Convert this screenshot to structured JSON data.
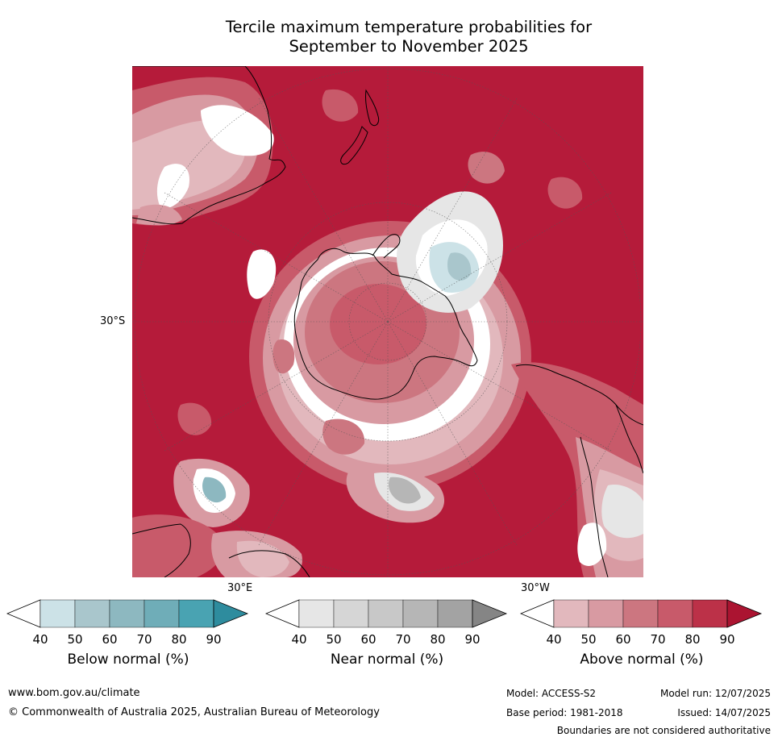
{
  "title": {
    "line1": "Tercile maximum temperature probabilities for",
    "line2": "September to November 2025"
  },
  "map": {
    "lat_label": "30°S",
    "lon_label_east": "30°E",
    "lon_label_west": "30°W",
    "colors": {
      "ocean_above": "#b51b3a",
      "above_70": "#c85a6a",
      "above_60": "#cc7680",
      "above_50": "#d89aa2",
      "above_40": "#e2b8bd",
      "white": "#ffffff",
      "below_50": "#a9c6cc",
      "below_60": "#8db8c0",
      "near_60": "#c8c8c8",
      "near_80": "#a6a6a6",
      "coast": "#000000",
      "grid": "#555555"
    }
  },
  "colorbars": [
    {
      "name": "below-normal",
      "label": "Below normal (%)",
      "ticks": [
        "40",
        "50",
        "60",
        "70",
        "80",
        "90"
      ],
      "colors": [
        "#ffffff",
        "#cce2e7",
        "#a9c6cc",
        "#8db8c0",
        "#6fadb8",
        "#49a3b2",
        "#2e8c9e"
      ]
    },
    {
      "name": "near-normal",
      "label": "Near normal (%)",
      "ticks": [
        "40",
        "50",
        "60",
        "70",
        "80",
        "90"
      ],
      "colors": [
        "#ffffff",
        "#e6e6e6",
        "#d6d6d6",
        "#c8c8c8",
        "#b6b6b6",
        "#a3a3a3",
        "#858585"
      ]
    },
    {
      "name": "above-normal",
      "label": "Above normal (%)",
      "ticks": [
        "40",
        "50",
        "60",
        "70",
        "80",
        "90"
      ],
      "colors": [
        "#ffffff",
        "#e2b8bd",
        "#d89aa2",
        "#cc7680",
        "#c85a6a",
        "#bc3148",
        "#ab1431"
      ]
    }
  ],
  "footer": {
    "website": "www.bom.gov.au/climate",
    "copyright": "© Commonwealth of Australia 2025, Australian Bureau of Meteorology",
    "model": "Model: ACCESS-S2",
    "model_run": "Model run: 12/07/2025",
    "base_period": "Base period: 1981-2018",
    "issued": "Issued: 14/07/2025",
    "disclaimer": "Boundaries are not considered authoritative"
  }
}
